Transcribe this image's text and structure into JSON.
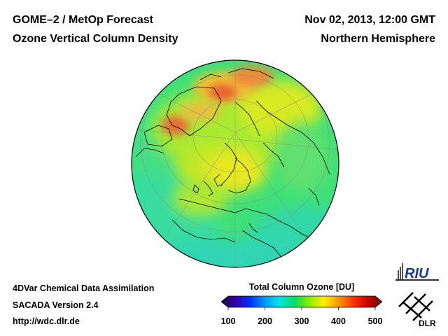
{
  "header": {
    "title_line1": "GOME–2 / MetOp Forecast",
    "title_line2": "Ozone Vertical Column Density",
    "date": "Nov 02, 2013, 12:00 GMT",
    "region": "Northern Hemisphere"
  },
  "footer": {
    "method": "4DVar Chemical Data Assimilation",
    "version": "SACADA Version 2.4",
    "url": "http://wdc.dlr.de"
  },
  "colorbar": {
    "title": "Total Column Ozone [DU]",
    "min": 100,
    "max": 500,
    "ticks": [
      "100",
      "200",
      "300",
      "400",
      "500"
    ],
    "colors": [
      "#1a0033",
      "#3300aa",
      "#0033ff",
      "#0099ff",
      "#00e5e5",
      "#00dd66",
      "#88ee00",
      "#ffee00",
      "#ff9900",
      "#ff3300",
      "#cc0000",
      "#661100"
    ]
  },
  "map": {
    "projection": "orthographic, Northern Hemisphere",
    "background_color": "#3fe078"
  },
  "logos": {
    "riu": "RIU",
    "dlr": "DLR"
  }
}
